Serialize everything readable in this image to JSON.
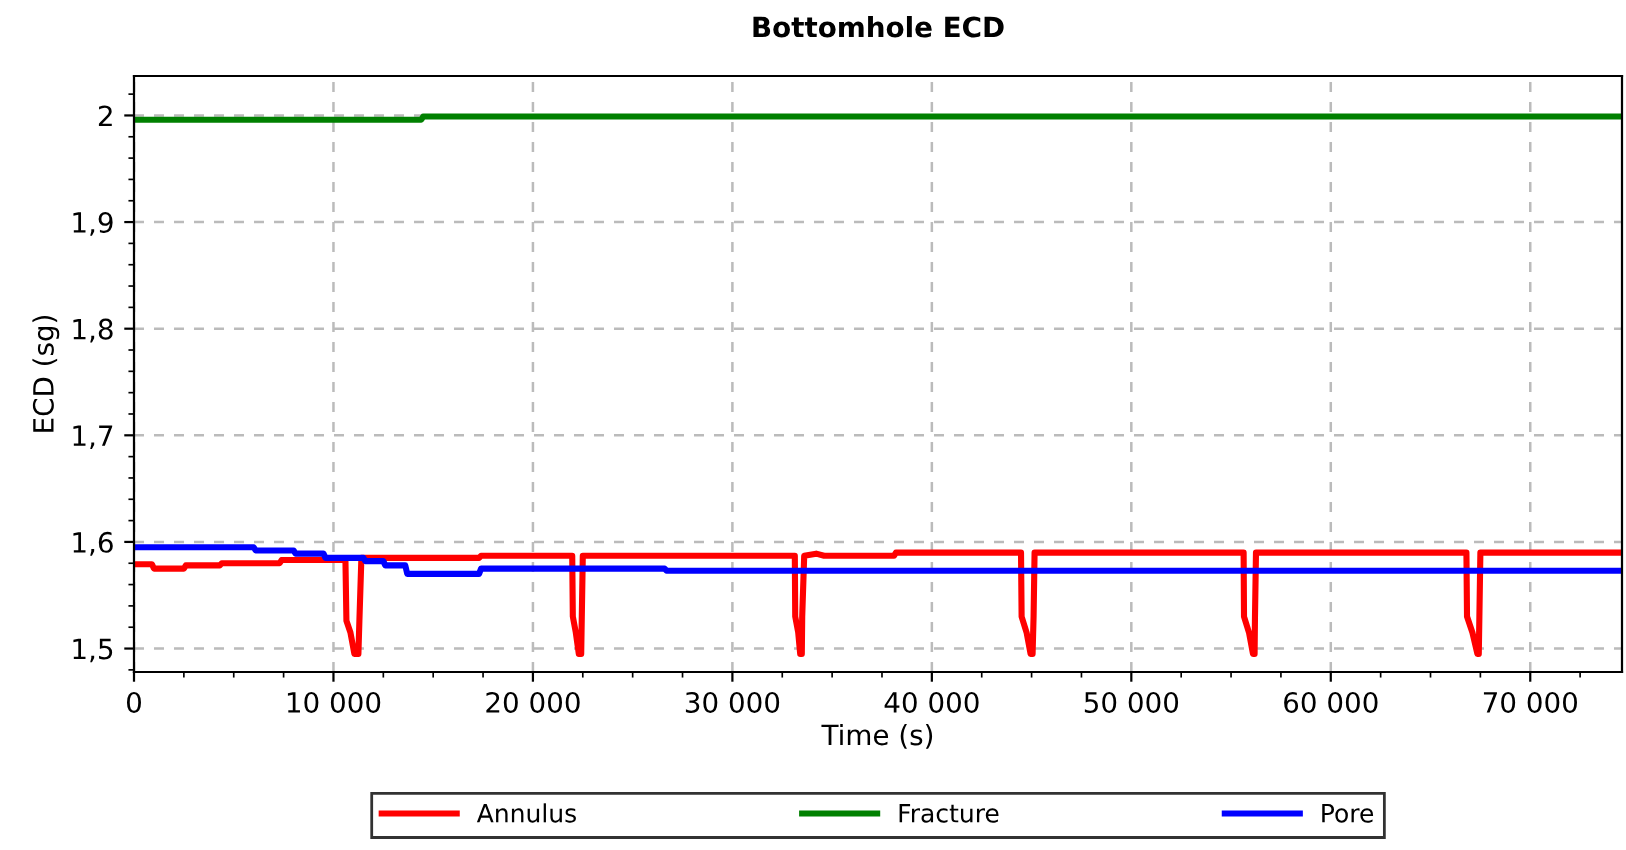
{
  "chart_data": {
    "type": "line",
    "title": "Bottomhole ECD",
    "xlabel": "Time (s)",
    "ylabel": "ECD (sg)",
    "xlim": [
      0,
      74600
    ],
    "ylim": [
      1.478,
      2.037
    ],
    "xticks": [
      {
        "value": 0,
        "label": "0"
      },
      {
        "value": 10000,
        "label": "10 000"
      },
      {
        "value": 20000,
        "label": "20 000"
      },
      {
        "value": 30000,
        "label": "30 000"
      },
      {
        "value": 40000,
        "label": "40 000"
      },
      {
        "value": 50000,
        "label": "50 000"
      },
      {
        "value": 60000,
        "label": "60 000"
      },
      {
        "value": 70000,
        "label": "70 000"
      }
    ],
    "yticks": [
      {
        "value": 1.5,
        "label": "1,5"
      },
      {
        "value": 1.6,
        "label": "1,6"
      },
      {
        "value": 1.7,
        "label": "1,7"
      },
      {
        "value": 1.8,
        "label": "1,8"
      },
      {
        "value": 1.9,
        "label": "1,9"
      },
      2
    ],
    "grid": true,
    "legend": "bottom",
    "marker": "none",
    "line_style": "solid",
    "series": [
      {
        "name": "Annulus",
        "color": "#ff0000",
        "x": [
          0,
          900,
          1000,
          2500,
          2600,
          4300,
          4400,
          7300,
          7400,
          10600,
          10650,
          10850,
          11050,
          11250,
          11300,
          11400,
          17300,
          17400,
          21970,
          22000,
          22150,
          22300,
          22420,
          22450,
          22500,
          33130,
          33150,
          33300,
          33400,
          33480,
          33500,
          33600,
          34200,
          34600,
          38100,
          38200,
          44470,
          44500,
          44750,
          44950,
          45050,
          45100,
          45150,
          55630,
          55650,
          55900,
          56100,
          56180,
          56200,
          56250,
          66800,
          66830,
          67100,
          67350,
          67420,
          67450,
          67500,
          74600
        ],
        "values": [
          1.579,
          1.579,
          1.575,
          1.575,
          1.578,
          1.578,
          1.58,
          1.58,
          1.583,
          1.583,
          1.526,
          1.515,
          1.495,
          1.495,
          1.526,
          1.585,
          1.585,
          1.587,
          1.587,
          1.53,
          1.515,
          1.495,
          1.495,
          1.53,
          1.587,
          1.587,
          1.53,
          1.515,
          1.495,
          1.495,
          1.53,
          1.587,
          1.589,
          1.587,
          1.587,
          1.59,
          1.59,
          1.53,
          1.515,
          1.495,
          1.495,
          1.53,
          1.59,
          1.59,
          1.53,
          1.515,
          1.495,
          1.495,
          1.53,
          1.59,
          1.59,
          1.53,
          1.515,
          1.495,
          1.495,
          1.53,
          1.59,
          1.59
        ]
      },
      {
        "name": "Fracture",
        "color": "#008000",
        "x": [
          0,
          14400,
          14500,
          74600
        ],
        "values": [
          1.996,
          1.996,
          1.999,
          1.999
        ]
      },
      {
        "name": "Pore",
        "color": "#0000ff",
        "x": [
          0,
          6000,
          6100,
          8000,
          8100,
          9500,
          9600,
          11500,
          11600,
          12500,
          12600,
          13600,
          13700,
          17300,
          17400,
          26600,
          26700,
          74600
        ],
        "values": [
          1.595,
          1.595,
          1.592,
          1.592,
          1.589,
          1.589,
          1.585,
          1.585,
          1.582,
          1.582,
          1.578,
          1.578,
          1.57,
          1.57,
          1.575,
          1.575,
          1.573,
          1.573
        ]
      }
    ]
  }
}
